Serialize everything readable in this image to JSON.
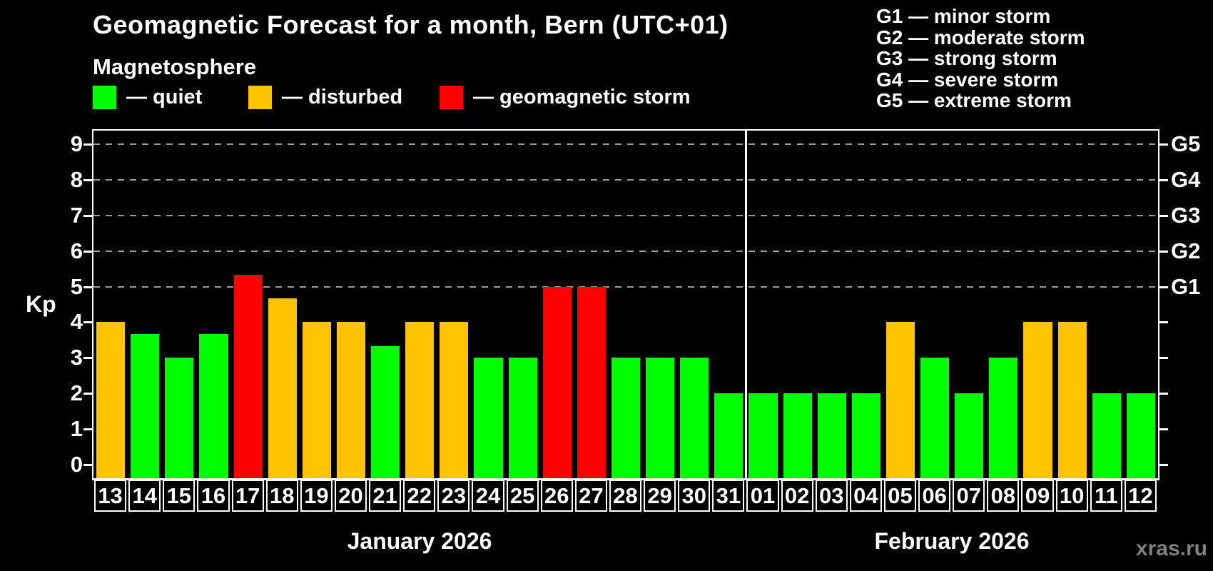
{
  "page": {
    "title": "Geomagnetic Forecast for a month, Bern (UTC+01)",
    "subtitle": "Magnetosphere",
    "watermark": "xras.ru"
  },
  "legend": {
    "items": [
      {
        "name": "quiet",
        "label": "— quiet",
        "color": "#00ff00"
      },
      {
        "name": "disturbed",
        "label": "— disturbed",
        "color": "#ffc300"
      },
      {
        "name": "storm",
        "label": "— geomagnetic storm",
        "color": "#ff0000"
      }
    ]
  },
  "storm_scale_legend": {
    "items": [
      "G1 — minor storm",
      "G2 — moderate storm",
      "G3 — strong storm",
      "G4 — severe storm",
      "G5 — extreme storm"
    ]
  },
  "chart_data": {
    "type": "bar",
    "title": "Geomagnetic Forecast for a month, Bern (UTC+01)",
    "ylabel": "Kp",
    "ylim": [
      0,
      9
    ],
    "y_ticks": [
      0,
      1,
      2,
      3,
      4,
      5,
      6,
      7,
      8,
      9
    ],
    "gridlines_at_kp": [
      5,
      6,
      7,
      8,
      9
    ],
    "right_axis": {
      "labels": [
        "G1",
        "G2",
        "G3",
        "G4",
        "G5"
      ],
      "at_kp": [
        5,
        6,
        7,
        8,
        9
      ]
    },
    "legend_position": "top-left",
    "grid": "dashed horizontal at storm levels only",
    "months": [
      {
        "label": "January 2026",
        "num_days": 19
      },
      {
        "label": "February 2026",
        "num_days": 12
      }
    ],
    "status_colors": {
      "quiet": "#00ff00",
      "disturbed": "#ffc300",
      "storm": "#ff0000"
    },
    "series": [
      {
        "name": "Kp forecast",
        "points": [
          {
            "date": "13",
            "kp": 4,
            "status": "disturbed"
          },
          {
            "date": "14",
            "kp": 3.67,
            "status": "quiet"
          },
          {
            "date": "15",
            "kp": 3,
            "status": "quiet"
          },
          {
            "date": "16",
            "kp": 3.67,
            "status": "quiet"
          },
          {
            "date": "17",
            "kp": 5.33,
            "status": "storm"
          },
          {
            "date": "18",
            "kp": 4.67,
            "status": "disturbed"
          },
          {
            "date": "19",
            "kp": 4,
            "status": "disturbed"
          },
          {
            "date": "20",
            "kp": 4,
            "status": "disturbed"
          },
          {
            "date": "21",
            "kp": 3.33,
            "status": "quiet"
          },
          {
            "date": "22",
            "kp": 4,
            "status": "disturbed"
          },
          {
            "date": "23",
            "kp": 4,
            "status": "disturbed"
          },
          {
            "date": "24",
            "kp": 3,
            "status": "quiet"
          },
          {
            "date": "25",
            "kp": 3,
            "status": "quiet"
          },
          {
            "date": "26",
            "kp": 5,
            "status": "storm"
          },
          {
            "date": "27",
            "kp": 5,
            "status": "storm"
          },
          {
            "date": "28",
            "kp": 3,
            "status": "quiet"
          },
          {
            "date": "29",
            "kp": 3,
            "status": "quiet"
          },
          {
            "date": "30",
            "kp": 3,
            "status": "quiet"
          },
          {
            "date": "31",
            "kp": 2,
            "status": "quiet"
          },
          {
            "date": "01",
            "kp": 2,
            "status": "quiet"
          },
          {
            "date": "02",
            "kp": 2,
            "status": "quiet"
          },
          {
            "date": "03",
            "kp": 2,
            "status": "quiet"
          },
          {
            "date": "04",
            "kp": 2,
            "status": "quiet"
          },
          {
            "date": "05",
            "kp": 4,
            "status": "disturbed"
          },
          {
            "date": "06",
            "kp": 3,
            "status": "quiet"
          },
          {
            "date": "07",
            "kp": 2,
            "status": "quiet"
          },
          {
            "date": "08",
            "kp": 3,
            "status": "quiet"
          },
          {
            "date": "09",
            "kp": 4,
            "status": "disturbed"
          },
          {
            "date": "10",
            "kp": 4,
            "status": "disturbed"
          },
          {
            "date": "11",
            "kp": 2,
            "status": "quiet"
          },
          {
            "date": "12",
            "kp": 2,
            "status": "quiet"
          }
        ]
      }
    ]
  }
}
